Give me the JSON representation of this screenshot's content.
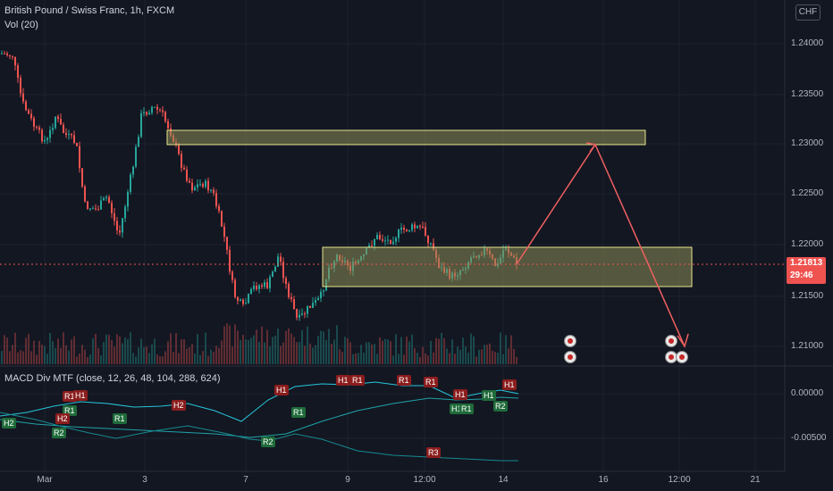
{
  "legend": {
    "symbol_line": "British Pound / Swiss Franc, 1h, FXCM",
    "volume_line": "Vol (20)",
    "macd_line": "MACD Div MTF (close, 12, 26, 48, 104, 288, 624)"
  },
  "currency": "CHF",
  "price_axis": [
    "1.24000",
    "1.23500",
    "1.23000",
    "1.22500",
    "1.22000",
    "1.21500",
    "1.21000"
  ],
  "macd_axis": [
    "0.00000",
    "-0.00500"
  ],
  "time_axis": [
    "Mar",
    "3",
    "7",
    "9",
    "12:00",
    "14",
    "16",
    "12:00",
    "21"
  ],
  "last_price": "1.21813",
  "countdown": "29:46",
  "macd_labels": [
    {
      "text": "R1",
      "tone": "red"
    },
    {
      "text": "H1",
      "tone": "red"
    },
    {
      "text": "R1",
      "tone": "green"
    },
    {
      "text": "H2",
      "tone": "green"
    },
    {
      "text": "H2",
      "tone": "red"
    },
    {
      "text": "R2",
      "tone": "green"
    },
    {
      "text": "R1",
      "tone": "green"
    },
    {
      "text": "H2",
      "tone": "red"
    },
    {
      "text": "H1",
      "tone": "red"
    },
    {
      "text": "R1",
      "tone": "green"
    },
    {
      "text": "R2",
      "tone": "green"
    },
    {
      "text": "H1",
      "tone": "red"
    },
    {
      "text": "R1",
      "tone": "red"
    },
    {
      "text": "R1",
      "tone": "red"
    },
    {
      "text": "R1",
      "tone": "red"
    },
    {
      "text": "H1",
      "tone": "red"
    },
    {
      "text": "H1",
      "tone": "green"
    },
    {
      "text": "R1",
      "tone": "green"
    },
    {
      "text": "H1",
      "tone": "green"
    },
    {
      "text": "R2",
      "tone": "green"
    },
    {
      "text": "H1",
      "tone": "red"
    },
    {
      "text": "R3",
      "tone": "red"
    }
  ],
  "colors": {
    "background": "#131722",
    "up": "#26a69a",
    "down": "#ef5350",
    "zone_fill": "#8c8c55",
    "zone_border": "#e6e68c",
    "arrow": "#f06060",
    "macd_line": "#26c6da"
  }
}
